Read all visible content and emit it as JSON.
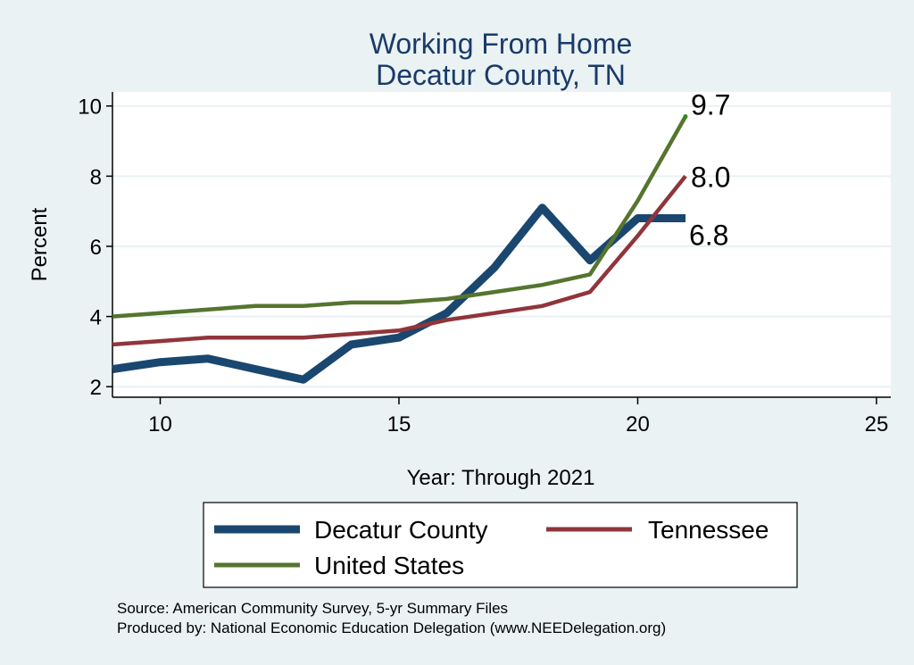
{
  "chart_data": {
    "type": "line",
    "title": "Working From Home",
    "subtitle": "Decatur County, TN",
    "xlabel": "Year: Through 2021",
    "ylabel": "Percent",
    "xlim": [
      9,
      25.3
    ],
    "ylim": [
      1.7,
      10.4
    ],
    "xticks": [
      10,
      15,
      20,
      25
    ],
    "yticks": [
      2,
      4,
      6,
      8,
      10
    ],
    "grid": true,
    "legend_position": "bottom",
    "series": [
      {
        "name": "Decatur County",
        "color": "#1a476f",
        "width": "thick",
        "x": [
          9,
          10,
          11,
          12,
          13,
          14,
          15,
          16,
          17,
          18,
          19,
          20,
          21
        ],
        "y": [
          2.5,
          2.7,
          2.8,
          2.5,
          2.2,
          3.2,
          3.4,
          4.1,
          5.4,
          7.1,
          5.6,
          6.8,
          6.8
        ],
        "end_label": "6.8"
      },
      {
        "name": "Tennessee",
        "color": "#90353b",
        "width": "medium",
        "x": [
          9,
          10,
          11,
          12,
          13,
          14,
          15,
          16,
          17,
          18,
          19,
          20,
          21
        ],
        "y": [
          3.2,
          3.3,
          3.4,
          3.4,
          3.4,
          3.5,
          3.6,
          3.9,
          4.1,
          4.3,
          4.7,
          6.3,
          8.0
        ],
        "end_label": "8.0"
      },
      {
        "name": "United States",
        "color": "#55752f",
        "width": "medium",
        "x": [
          9,
          10,
          11,
          12,
          13,
          14,
          15,
          16,
          17,
          18,
          19,
          20,
          21
        ],
        "y": [
          4.0,
          4.1,
          4.2,
          4.3,
          4.3,
          4.4,
          4.4,
          4.5,
          4.7,
          4.9,
          5.2,
          7.3,
          9.7
        ],
        "end_label": "9.7"
      }
    ],
    "notes": [
      "Source: American Community Survey, 5-yr Summary Files",
      "Produced by: National Economic Education Delegation (www.NEEDelegation.org)"
    ]
  }
}
